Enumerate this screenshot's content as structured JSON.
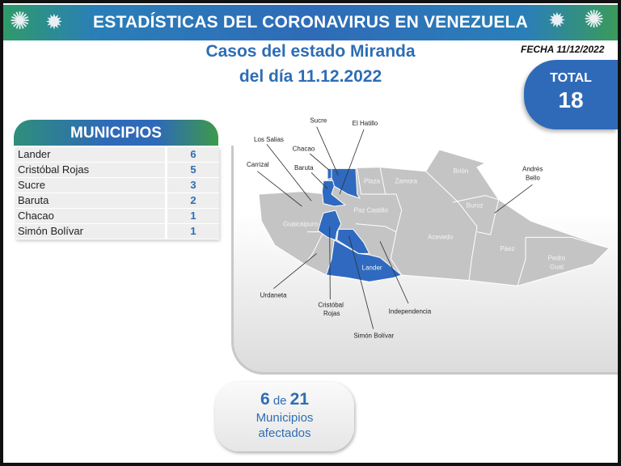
{
  "header": {
    "title": "ESTADÍSTICAS DEL CORONAVIRUS EN VENEZUELA",
    "icon": "virus-icon"
  },
  "subtitle": {
    "line1": "Casos del estado Miranda",
    "line2": "del día 11.12.2022"
  },
  "fecha": "FECHA 11/12/2022",
  "total": {
    "label": "TOTAL",
    "value": "18"
  },
  "municipios": {
    "title": "MUNICIPIOS",
    "rows": [
      {
        "name": "Lander",
        "cases": "6"
      },
      {
        "name": "Cristóbal Rojas",
        "cases": "5"
      },
      {
        "name": "Sucre",
        "cases": "3"
      },
      {
        "name": "Baruta",
        "cases": "2"
      },
      {
        "name": "Chacao",
        "cases": "1"
      },
      {
        "name": "Simón Bolívar",
        "cases": "1"
      }
    ]
  },
  "map": {
    "colors": {
      "affected": "#2f6ac0",
      "unaffected": "#c4c4c4"
    },
    "leader_labels": {
      "sucre": "Sucre",
      "el_hatillo": "El Hatillo",
      "los_salias": "Los Salias",
      "chacao": "Chacao",
      "carrizal": "Carrizal",
      "baruta": "Baruta",
      "andres_bello_1": "Andrés",
      "andres_bello_2": "Bello",
      "urdaneta": "Urdaneta",
      "cristobal_1": "Cristóbal",
      "cristobal_2": "Rojas",
      "simon_bolivar": "Simón Bolívar",
      "independencia": "Independencia"
    },
    "inner_labels": {
      "plaza": "Plaza",
      "zamora": "Zamora",
      "brion": "Brión",
      "paz_castillo": "Paz Castillo",
      "guaicaipuro": "Guaicaipuro",
      "acevedo": "Acevedo",
      "buroz": "Buroz",
      "paez": "Páez",
      "pedro_gual_1": "Pedro",
      "pedro_gual_2": "Gual",
      "lander": "Lander"
    }
  },
  "summary": {
    "affected": "6",
    "connector": "de",
    "total": "21",
    "line2": "Municipios",
    "line3": "afectados"
  }
}
